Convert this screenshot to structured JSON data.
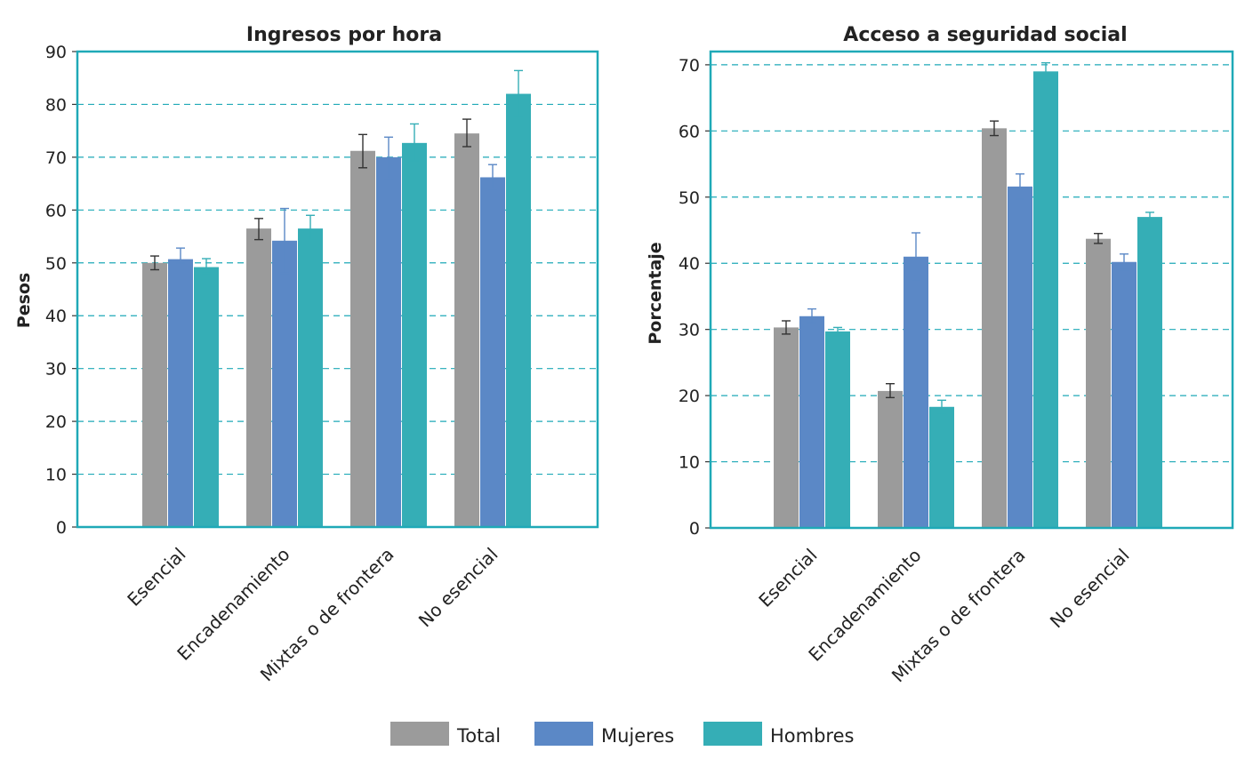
{
  "colors": {
    "frame": "#1fa9b7",
    "grid": "#1fa9b7",
    "series": [
      "#9b9b9b",
      "#5b88c6",
      "#35aeb6"
    ],
    "error": [
      "#333333",
      "#5b88c6",
      "#35aeb6"
    ]
  },
  "legend": {
    "placement": "bottom-center",
    "items": [
      "Total",
      "Mujeres",
      "Hombres"
    ]
  },
  "chart_data": [
    {
      "type": "bar",
      "title": "Ingresos por hora",
      "xlabel": "",
      "ylabel": "Pesos",
      "ylim": [
        0,
        90
      ],
      "yticks": [
        "0",
        "10",
        "20",
        "30",
        "40",
        "50",
        "60",
        "70",
        "80",
        "90"
      ],
      "grid": true,
      "categories": [
        "Esencial",
        "Encadenamiento",
        "Mixtas o de frontera",
        "No esencial"
      ],
      "series": [
        {
          "name": "Total",
          "values": [
            50.0,
            56.5,
            71.2,
            74.5
          ],
          "error_low": [
            48.7,
            54.4,
            68.0,
            72.0
          ],
          "error_high": [
            51.3,
            58.4,
            74.3,
            77.2
          ]
        },
        {
          "name": "Mujeres",
          "values": [
            50.7,
            54.2,
            70.0,
            66.2
          ],
          "error_low": [
            50.0,
            48.0,
            66.0,
            64.0
          ],
          "error_high": [
            52.8,
            60.3,
            73.8,
            68.6
          ]
        },
        {
          "name": "Hombres",
          "values": [
            49.2,
            56.5,
            72.7,
            82.0
          ],
          "error_low": [
            48.0,
            54.3,
            69.3,
            77.5
          ],
          "error_high": [
            50.8,
            59.0,
            76.3,
            86.4
          ]
        }
      ]
    },
    {
      "type": "bar",
      "title": "Acceso a seguridad social",
      "xlabel": "",
      "ylabel": "Porcentaje",
      "ylim": [
        0,
        72
      ],
      "yticks": [
        "0",
        "10",
        "20",
        "30",
        "40",
        "50",
        "60",
        "70"
      ],
      "grid": true,
      "categories": [
        "Esencial",
        "Encadenamiento",
        "Mixtas o de frontera",
        "No esencial"
      ],
      "series": [
        {
          "name": "Total",
          "values": [
            30.3,
            20.7,
            60.4,
            43.7
          ],
          "error_low": [
            29.3,
            19.7,
            59.3,
            43.0
          ],
          "error_high": [
            31.3,
            21.8,
            61.5,
            44.5
          ]
        },
        {
          "name": "Mujeres",
          "values": [
            32.0,
            41.0,
            51.6,
            40.2
          ],
          "error_low": [
            31.0,
            37.3,
            49.7,
            39.0
          ],
          "error_high": [
            33.1,
            44.6,
            53.5,
            41.4
          ]
        },
        {
          "name": "Hombres",
          "values": [
            29.7,
            18.3,
            69.0,
            47.0
          ],
          "error_low": [
            29.0,
            17.3,
            67.7,
            46.2
          ],
          "error_high": [
            30.3,
            19.3,
            70.3,
            47.7
          ]
        }
      ]
    }
  ]
}
